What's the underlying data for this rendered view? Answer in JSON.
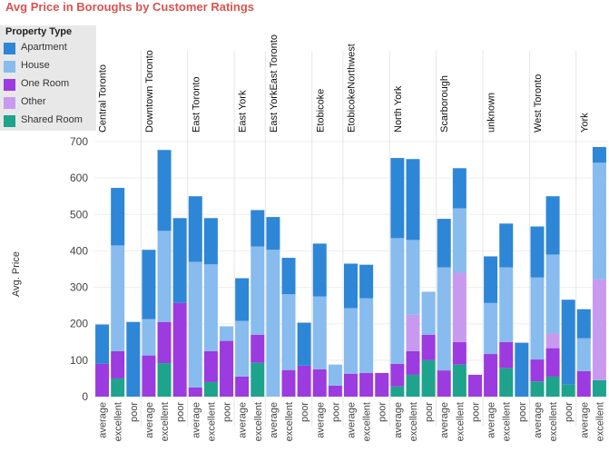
{
  "colors": {
    "Apartment": "#2e86d7",
    "House": "#88bbee",
    "One Room": "#9b3be0",
    "Other": "#c79af0",
    "Shared Room": "#1ea38c"
  },
  "chart_data": {
    "type": "bar",
    "stacked": true,
    "title": "Avg Price in Boroughs by Customer Ratings",
    "ylabel": "Avg. Price",
    "ylim": [
      0,
      700
    ],
    "yticks": [
      0,
      100,
      200,
      300,
      400,
      500,
      600,
      700
    ],
    "legend": {
      "title": "Property Type",
      "placement": "top-left",
      "items": [
        "Apartment",
        "House",
        "One Room",
        "Other",
        "Shared Room"
      ]
    },
    "groups": [
      "Central Toronto",
      "Downtown Toronto",
      "East Toronto",
      "East York",
      "East YorkEast Toronto",
      "Etobicoke",
      "EtobicokeNorthwest",
      "North York",
      "Scarborough",
      "unknown",
      "West Toronto",
      "York"
    ],
    "bars": [
      {
        "group": 0,
        "rating": "average",
        "stack": {
          "Shared Room": 0,
          "One Room": 90,
          "Other": 0,
          "House": 0,
          "Apartment": 108
        }
      },
      {
        "group": 0,
        "rating": "excellent",
        "stack": {
          "Shared Room": 50,
          "One Room": 75,
          "Other": 0,
          "House": 290,
          "Apartment": 158
        }
      },
      {
        "group": 0,
        "rating": "poor",
        "stack": {
          "Shared Room": 0,
          "One Room": 0,
          "Other": 0,
          "House": 0,
          "Apartment": 205
        }
      },
      {
        "group": 1,
        "rating": "average",
        "stack": {
          "Shared Room": 0,
          "One Room": 113,
          "Other": 0,
          "House": 100,
          "Apartment": 190
        }
      },
      {
        "group": 1,
        "rating": "excellent",
        "stack": {
          "Shared Room": 92,
          "One Room": 113,
          "Other": 0,
          "House": 250,
          "Apartment": 222
        }
      },
      {
        "group": 1,
        "rating": "poor",
        "stack": {
          "Shared Room": 0,
          "One Room": 257,
          "Other": 0,
          "House": 0,
          "Apartment": 233
        }
      },
      {
        "group": 2,
        "rating": "average",
        "stack": {
          "Shared Room": 0,
          "One Room": 25,
          "Other": 0,
          "House": 345,
          "Apartment": 180
        }
      },
      {
        "group": 2,
        "rating": "excellent",
        "stack": {
          "Shared Room": 40,
          "One Room": 85,
          "Other": 0,
          "House": 238,
          "Apartment": 127
        }
      },
      {
        "group": 2,
        "rating": "poor",
        "stack": {
          "Shared Room": 0,
          "One Room": 153,
          "Other": 0,
          "House": 40,
          "Apartment": 0
        }
      },
      {
        "group": 3,
        "rating": "average",
        "stack": {
          "Shared Room": 0,
          "One Room": 55,
          "Other": 0,
          "House": 153,
          "Apartment": 117
        }
      },
      {
        "group": 3,
        "rating": "excellent",
        "stack": {
          "Shared Room": 93,
          "One Room": 77,
          "Other": 0,
          "House": 242,
          "Apartment": 100
        }
      },
      {
        "group": 4,
        "rating": "average",
        "stack": {
          "Shared Room": 0,
          "One Room": 0,
          "Other": 0,
          "House": 403,
          "Apartment": 90
        }
      },
      {
        "group": 4,
        "rating": "excellent",
        "stack": {
          "Shared Room": 0,
          "One Room": 73,
          "Other": 0,
          "House": 208,
          "Apartment": 100
        }
      },
      {
        "group": 4,
        "rating": "poor",
        "stack": {
          "Shared Room": 0,
          "One Room": 85,
          "Other": 0,
          "House": 0,
          "Apartment": 118
        }
      },
      {
        "group": 5,
        "rating": "average",
        "stack": {
          "Shared Room": 0,
          "One Room": 75,
          "Other": 0,
          "House": 200,
          "Apartment": 145
        }
      },
      {
        "group": 5,
        "rating": "poor",
        "stack": {
          "Shared Room": 0,
          "One Room": 30,
          "Other": 0,
          "House": 58,
          "Apartment": 0
        }
      },
      {
        "group": 6,
        "rating": "average",
        "stack": {
          "Shared Room": 0,
          "One Room": 63,
          "Other": 0,
          "House": 180,
          "Apartment": 122
        }
      },
      {
        "group": 6,
        "rating": "excellent",
        "stack": {
          "Shared Room": 0,
          "One Room": 65,
          "Other": 0,
          "House": 205,
          "Apartment": 92
        }
      },
      {
        "group": 6,
        "rating": "poor",
        "stack": {
          "Shared Room": 0,
          "One Room": 65,
          "Other": 0,
          "House": 0,
          "Apartment": 0
        }
      },
      {
        "group": 7,
        "rating": "average",
        "stack": {
          "Shared Room": 28,
          "One Room": 62,
          "Other": 0,
          "House": 345,
          "Apartment": 220
        }
      },
      {
        "group": 7,
        "rating": "excellent",
        "stack": {
          "Shared Room": 60,
          "One Room": 65,
          "Other": 100,
          "House": 205,
          "Apartment": 222
        }
      },
      {
        "group": 7,
        "rating": "poor",
        "stack": {
          "Shared Room": 100,
          "One Room": 70,
          "Other": 0,
          "House": 118,
          "Apartment": 0
        }
      },
      {
        "group": 8,
        "rating": "average",
        "stack": {
          "Shared Room": 0,
          "One Room": 72,
          "Other": 0,
          "House": 283,
          "Apartment": 133
        }
      },
      {
        "group": 8,
        "rating": "excellent",
        "stack": {
          "Shared Room": 88,
          "One Room": 62,
          "Other": 190,
          "House": 177,
          "Apartment": 110
        }
      },
      {
        "group": 8,
        "rating": "poor",
        "stack": {
          "Shared Room": 0,
          "One Room": 60,
          "Other": 0,
          "House": 0,
          "Apartment": 0
        }
      },
      {
        "group": 9,
        "rating": "average",
        "stack": {
          "Shared Room": 0,
          "One Room": 117,
          "Other": 0,
          "House": 140,
          "Apartment": 128
        }
      },
      {
        "group": 9,
        "rating": "excellent",
        "stack": {
          "Shared Room": 78,
          "One Room": 72,
          "Other": 0,
          "House": 205,
          "Apartment": 120
        }
      },
      {
        "group": 9,
        "rating": "poor",
        "stack": {
          "Shared Room": 0,
          "One Room": 0,
          "Other": 0,
          "House": 0,
          "Apartment": 148
        }
      },
      {
        "group": 10,
        "rating": "average",
        "stack": {
          "Shared Room": 42,
          "One Room": 60,
          "Other": 0,
          "House": 225,
          "Apartment": 140
        }
      },
      {
        "group": 10,
        "rating": "excellent",
        "stack": {
          "Shared Room": 55,
          "One Room": 78,
          "Other": 40,
          "House": 217,
          "Apartment": 160
        }
      },
      {
        "group": 10,
        "rating": "poor",
        "stack": {
          "Shared Room": 33,
          "One Room": 0,
          "Other": 0,
          "House": 0,
          "Apartment": 233
        }
      },
      {
        "group": 11,
        "rating": "average",
        "stack": {
          "Shared Room": 0,
          "One Room": 70,
          "Other": 0,
          "House": 90,
          "Apartment": 80
        }
      },
      {
        "group": 11,
        "rating": "excellent",
        "stack": {
          "Shared Room": 45,
          "One Room": 0,
          "Other": 277,
          "House": 320,
          "Apartment": 43
        }
      }
    ]
  }
}
